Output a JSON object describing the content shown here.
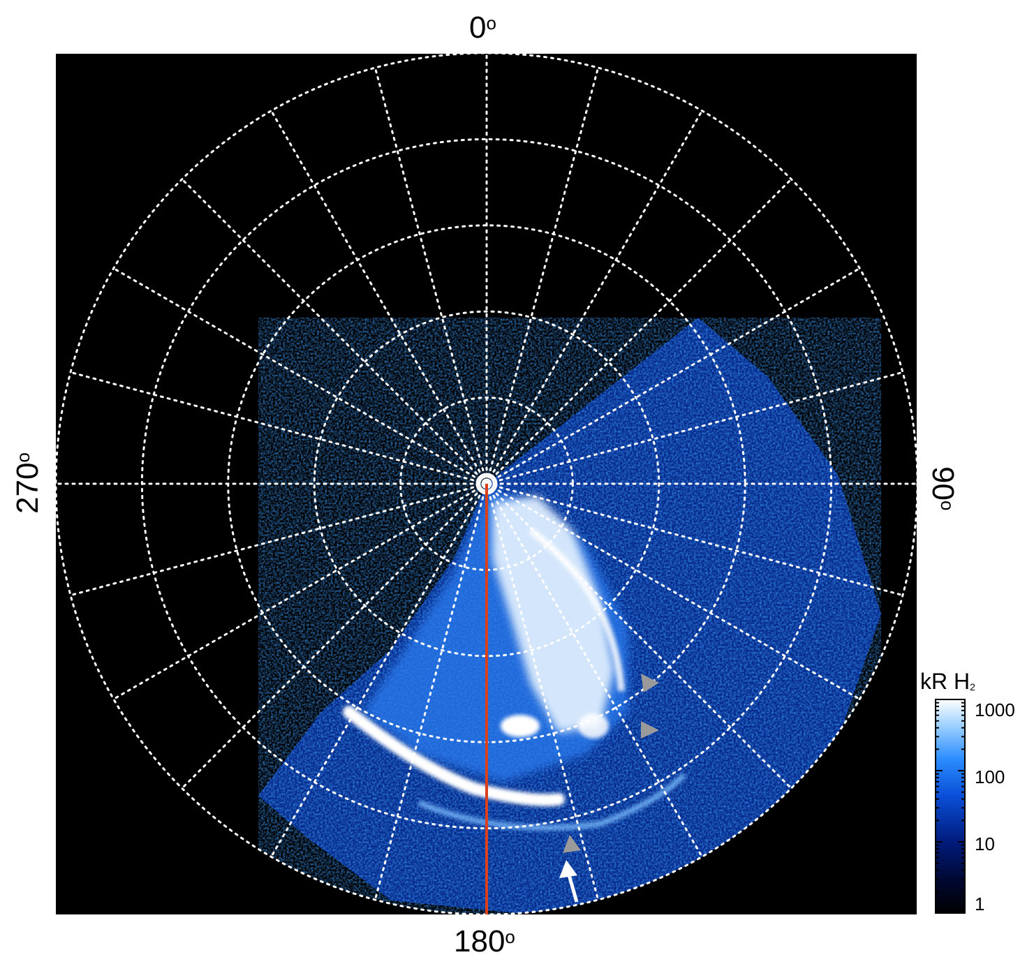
{
  "labels": {
    "top": "0",
    "bottom": "180",
    "left": "270",
    "right": "90",
    "degree_symbol": "o"
  },
  "colorbar": {
    "title_main": "kR H",
    "title_sub": "2",
    "ticks": [
      "1000",
      "100",
      "10",
      "1"
    ],
    "tick_values": [
      1000,
      100,
      10,
      1
    ],
    "colors": [
      "#000000",
      "#000830",
      "#001a7a",
      "#0a4fd8",
      "#2b8cff",
      "#9fd2ff",
      "#ffffff"
    ]
  },
  "grid": {
    "style": "dotted",
    "color": "#ffffff",
    "meridian_step_deg": 15,
    "ring_count": 5
  },
  "colors": {
    "background": "#000000",
    "meridian_line": "#d8401e",
    "arrow_grey": "#9a9a9a",
    "arrow_white": "#ffffff"
  },
  "image": {
    "subject": "polar-aurora-emission-map",
    "line_meridian_deg": 180
  }
}
